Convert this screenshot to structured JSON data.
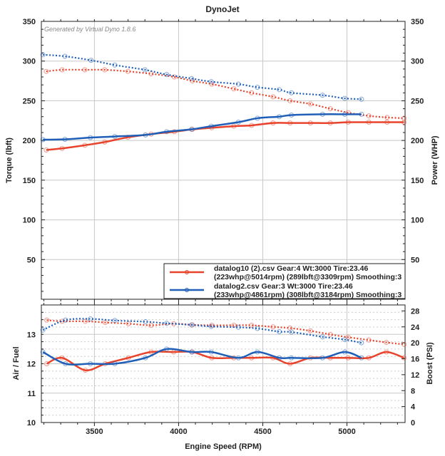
{
  "title": "DynoJet",
  "watermark": "Generated by Virtual Dyno 1.8.6",
  "colors": {
    "run1": "#e8432b",
    "run2": "#1f5fb8"
  },
  "legend": [
    {
      "line1": "datalog10 (2).csv Gear:4 Wt:3000 Tire:23.46",
      "line2": "(223whp@5014rpm) (289lbft@3309rpm) Smoothing:3"
    },
    {
      "line1": "datalog2.csv Gear:3 Wt:3000 Tire:23.46",
      "line2": "(233whp@4861rpm) (308lbft@3184rpm) Smoothing:3"
    }
  ],
  "chart_data": [
    {
      "type": "line",
      "title": "DynoJet",
      "xlabel": "Engine Speed (RPM)",
      "ylabel": "Torque (lbft)",
      "y2label": "Power (WHP)",
      "xlim": [
        3185,
        5345
      ],
      "ylim": [
        0,
        350
      ],
      "y2lim": [
        0,
        350
      ],
      "grid": true,
      "legend": "bottom-right",
      "xticks": [
        3500,
        4000,
        4500,
        5000
      ],
      "yticks": [
        50,
        100,
        150,
        200,
        250,
        300,
        350
      ],
      "series": [
        {
          "name": "datalog10 (2).csv torque",
          "run": 0,
          "style": "dotted",
          "axis": "left",
          "x": [
            3214,
            3308,
            3443,
            3561,
            3699,
            3837,
            3975,
            4082,
            4197,
            4328,
            4433,
            4561,
            4662,
            4783,
            4901,
            5007,
            5130,
            5238,
            5339
          ],
          "y": [
            287,
            289,
            289,
            289,
            287,
            284,
            280,
            275,
            271,
            265,
            260,
            255,
            250,
            246,
            240,
            235,
            231,
            229,
            228
          ]
        },
        {
          "name": "datalog2.csv torque",
          "run": 1,
          "style": "dotted",
          "axis": "left",
          "x": [
            3194,
            3325,
            3480,
            3621,
            3800,
            3929,
            4077,
            4194,
            4355,
            4468,
            4598,
            4670,
            4855,
            4987,
            5086
          ],
          "y": [
            308,
            306,
            301,
            295,
            289,
            283,
            278,
            274,
            271,
            267,
            264,
            260,
            257,
            253,
            252
          ]
        },
        {
          "name": "datalog10 (2).csv power",
          "run": 0,
          "style": "solid",
          "axis": "right",
          "x": [
            3214,
            3308,
            3443,
            3561,
            3699,
            3837,
            3975,
            4082,
            4197,
            4328,
            4433,
            4561,
            4662,
            4783,
            4901,
            5007,
            5130,
            5238,
            5339
          ],
          "y": [
            188,
            190,
            194,
            198,
            204,
            208,
            211,
            214,
            216,
            218,
            219,
            222,
            222,
            222,
            222,
            223,
            223,
            223,
            223
          ]
        },
        {
          "name": "datalog2.csv power",
          "run": 1,
          "style": "solid",
          "axis": "right",
          "x": [
            3194,
            3325,
            3476,
            3621,
            3803,
            3929,
            4077,
            4194,
            4355,
            4468,
            4598,
            4670,
            4855,
            4987,
            5086
          ],
          "y": [
            201,
            201.5,
            203.6,
            205,
            207,
            211,
            214,
            218,
            223,
            228,
            230,
            232,
            233,
            233,
            233
          ]
        }
      ]
    },
    {
      "type": "line",
      "xlabel": "Engine Speed (RPM)",
      "ylabel": "Air / Fuel",
      "y2label": "Boost (PSI)",
      "xlim": [
        3185,
        5345
      ],
      "ylim": [
        10,
        14
      ],
      "y2lim": [
        0,
        29.5
      ],
      "grid": true,
      "xticks": [
        3500,
        4000,
        4500,
        5000
      ],
      "yticks": [
        10,
        11,
        12,
        13
      ],
      "y2ticks": [
        0,
        4,
        8,
        12,
        16,
        20,
        24,
        28
      ],
      "series": [
        {
          "name": "datalog10 (2).csv air/fuel",
          "run": 0,
          "style": "solid",
          "axis": "left",
          "x": [
            3217,
            3308,
            3446,
            3564,
            3702,
            3837,
            3971,
            4082,
            4197,
            4328,
            4433,
            4561,
            4662,
            4783,
            4901,
            5007,
            5130,
            5234,
            5339
          ],
          "y": [
            12.0,
            12.2,
            11.78,
            12.0,
            12.2,
            12.4,
            12.4,
            12.4,
            12.2,
            12.2,
            12.2,
            12.2,
            12.0,
            12.2,
            12.2,
            12.2,
            12.2,
            12.4,
            12.2
          ]
        },
        {
          "name": "datalog2.csv air/fuel",
          "run": 1,
          "style": "solid",
          "axis": "left",
          "x": [
            3194,
            3328,
            3476,
            3621,
            3803,
            3929,
            4077,
            4194,
            4355,
            4468,
            4598,
            4670,
            4855,
            4987,
            5086
          ],
          "y": [
            12.4,
            12.0,
            12.0,
            12.0,
            12.2,
            12.5,
            12.4,
            12.4,
            12.2,
            12.4,
            12.2,
            12.2,
            12.2,
            12.4,
            12.2
          ]
        },
        {
          "name": "datalog10 (2).csv boost",
          "run": 0,
          "style": "dotted",
          "axis": "right",
          "x": [
            3217,
            3308,
            3446,
            3564,
            3702,
            3837,
            3971,
            4082,
            4197,
            4328,
            4433,
            4561,
            4662,
            4783,
            4901,
            5007,
            5130,
            5234,
            5339
          ],
          "y": [
            25.7,
            25.4,
            25.4,
            25.1,
            24.8,
            24.4,
            24.8,
            24.5,
            24.4,
            24.4,
            24.4,
            24.0,
            23.7,
            23.0,
            22.1,
            21.4,
            20.7,
            20.1,
            19.6
          ]
        },
        {
          "name": "datalog2.csv boost",
          "run": 1,
          "style": "dotted",
          "axis": "right",
          "x": [
            3194,
            3328,
            3476,
            3621,
            3803,
            3929,
            4077,
            4194,
            4355,
            4468,
            4598,
            4670,
            4855,
            4987,
            5086
          ],
          "y": [
            23.2,
            25.7,
            26.0,
            25.6,
            25.3,
            24.9,
            24.5,
            24.1,
            23.9,
            23.6,
            22.8,
            22.7,
            21.5,
            20.8,
            20.0
          ]
        }
      ]
    }
  ]
}
